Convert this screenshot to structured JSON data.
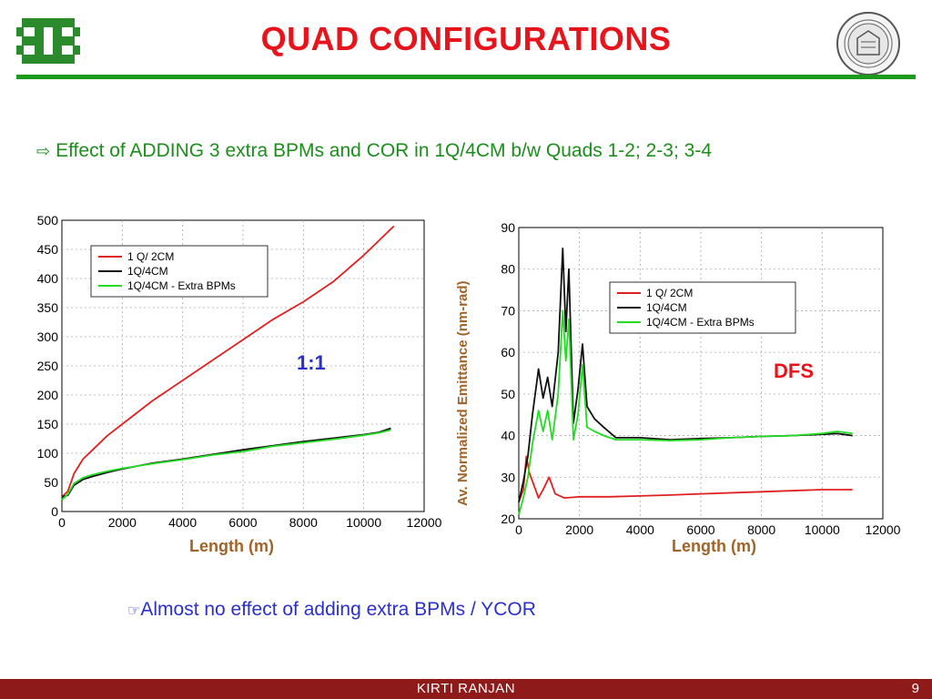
{
  "slide": {
    "title": "QUAD CONFIGURATIONS",
    "bullet": "Effect of ADDING 3 extra BPMs and COR in 1Q/4CM b/w Quads 1-2; 2-3; 3-4",
    "note": "Almost no effect of adding extra BPMs / YCOR",
    "footer_name": "KIRTI  RANJAN",
    "page_number": "9",
    "colors": {
      "title": "#e8141c",
      "rule": "#1c9a1c",
      "bullet": "#1c8e1c",
      "note": "#2a30c8",
      "footer": "#8e1a1a",
      "axis_label": "#a0642a"
    },
    "icons": {
      "left_logo": "fermilab-logo-icon",
      "right_logo": "university-seal-icon",
      "bullet": "hollow-arrow-icon",
      "note": "pointing-hand-icon"
    }
  },
  "chart_data": [
    {
      "type": "line",
      "xlabel": "Length (m)",
      "ylabel": "",
      "xlim": [
        0,
        12000
      ],
      "ylim": [
        0,
        500
      ],
      "xticks": [
        "0",
        "2000",
        "4000",
        "6000",
        "8000",
        "10000",
        "12000"
      ],
      "yticks": [
        "0",
        "50",
        "100",
        "150",
        "200",
        "250",
        "300",
        "350",
        "400",
        "450",
        "500"
      ],
      "grid": true,
      "legend_position": "top-left",
      "annotation": "1:1",
      "annotation_color": "#2a30c8",
      "series": [
        {
          "name": "1 Q/ 2CM",
          "color": "#e02020",
          "x": [
            0,
            200,
            400,
            700,
            1000,
            1500,
            2000,
            3000,
            4000,
            5000,
            6000,
            7000,
            8000,
            9000,
            10000,
            10500,
            11000
          ],
          "y": [
            25,
            35,
            65,
            90,
            105,
            130,
            150,
            190,
            225,
            260,
            295,
            330,
            360,
            395,
            440,
            465,
            490
          ]
        },
        {
          "name": "1Q/4CM",
          "color": "#111111",
          "x": [
            0,
            200,
            400,
            700,
            1000,
            1500,
            2000,
            3000,
            4000,
            5000,
            6000,
            7000,
            8000,
            9000,
            10000,
            10500,
            10900
          ],
          "y": [
            25,
            28,
            45,
            55,
            60,
            67,
            73,
            83,
            90,
            98,
            106,
            113,
            120,
            126,
            132,
            136,
            143
          ]
        },
        {
          "name": "1Q/4CM - Extra BPMs",
          "color": "#22dd22",
          "x": [
            0,
            200,
            400,
            700,
            1000,
            1500,
            2000,
            3000,
            4000,
            5000,
            6000,
            7000,
            8000,
            9000,
            10000,
            10500,
            10900
          ],
          "y": [
            20,
            30,
            48,
            58,
            63,
            69,
            74,
            82,
            89,
            97,
            103,
            112,
            118,
            124,
            131,
            135,
            140
          ]
        }
      ]
    },
    {
      "type": "line",
      "xlabel": "Length (m)",
      "ylabel": "Av. Normalized Emittance (nm-rad)",
      "xlim": [
        0,
        12000
      ],
      "ylim": [
        20,
        90
      ],
      "xticks": [
        "0",
        "2000",
        "4000",
        "6000",
        "8000",
        "10000",
        "12000"
      ],
      "yticks": [
        "20",
        "30",
        "40",
        "50",
        "60",
        "70",
        "80",
        "90"
      ],
      "grid": true,
      "legend_position": "top-right",
      "annotation": "DFS",
      "annotation_color": "#e8141c",
      "series": [
        {
          "name": "1 Q/ 2CM",
          "color": "#e02020",
          "x": [
            0,
            150,
            250,
            350,
            500,
            650,
            800,
            1000,
            1200,
            1500,
            2000,
            3000,
            4000,
            5000,
            6000,
            8000,
            10000,
            11000
          ],
          "y": [
            24,
            27,
            35,
            31,
            28,
            25,
            27,
            30,
            26,
            25,
            25.3,
            25.3,
            25.5,
            25.7,
            26,
            26.5,
            27,
            27
          ]
        },
        {
          "name": "1Q/4CM",
          "color": "#111111",
          "x": [
            0,
            150,
            300,
            450,
            650,
            800,
            950,
            1100,
            1300,
            1450,
            1550,
            1650,
            1800,
            1950,
            2100,
            2250,
            2500,
            2800,
            3200,
            4000,
            5000,
            6000,
            7000,
            8000,
            9000,
            10000,
            10500,
            11000
          ],
          "y": [
            24,
            29,
            35,
            45,
            56,
            49,
            54,
            47,
            60,
            85,
            65,
            80,
            43,
            51,
            62,
            47,
            44,
            42,
            39.5,
            39.5,
            39,
            39.3,
            39.5,
            39.8,
            40,
            40.3,
            40.5,
            40
          ]
        },
        {
          "name": "1Q/4CM - Extra BPMs",
          "color": "#22dd22",
          "x": [
            0,
            150,
            300,
            450,
            650,
            800,
            950,
            1100,
            1300,
            1450,
            1550,
            1650,
            1800,
            1950,
            2100,
            2250,
            2500,
            2800,
            3200,
            4000,
            5000,
            6000,
            7000,
            8000,
            9000,
            10000,
            10500,
            11000
          ],
          "y": [
            21,
            25,
            30,
            38,
            46,
            41,
            46,
            39,
            50,
            70,
            58,
            68,
            39,
            45,
            57,
            42,
            41,
            40,
            39,
            39,
            38.8,
            39,
            39.5,
            39.8,
            40,
            40.5,
            41,
            40.5
          ]
        }
      ]
    }
  ]
}
